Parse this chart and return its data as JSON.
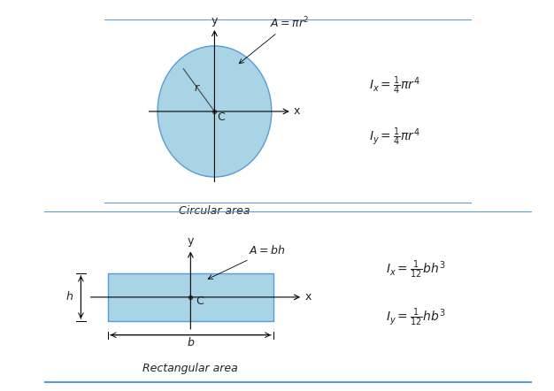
{
  "bg_color": "#ffffff",
  "panel_bg": "#f5f5f5",
  "border_color": "#5b9bd5",
  "circle_fill": "#a8d4e6",
  "circle_edge": "#5b9bd5",
  "rect_fill": "#a8d4e6",
  "rect_edge": "#5b9bd5",
  "text_color": "#222222",
  "top_label": "Circular area",
  "bottom_label": "Rectangular area",
  "circle_eq_A": "$A = \\pi r^2$",
  "circle_eq_Ix": "$I_x = \\frac{1}{4}\\pi r^4$",
  "circle_eq_Iy": "$I_y = \\frac{1}{4}\\pi r^4$",
  "rect_eq_A": "$A = bh$",
  "rect_eq_Ix": "$I_x = \\frac{1}{12}bh^3$",
  "rect_eq_Iy": "$I_y = \\frac{1}{12}hb^3$"
}
